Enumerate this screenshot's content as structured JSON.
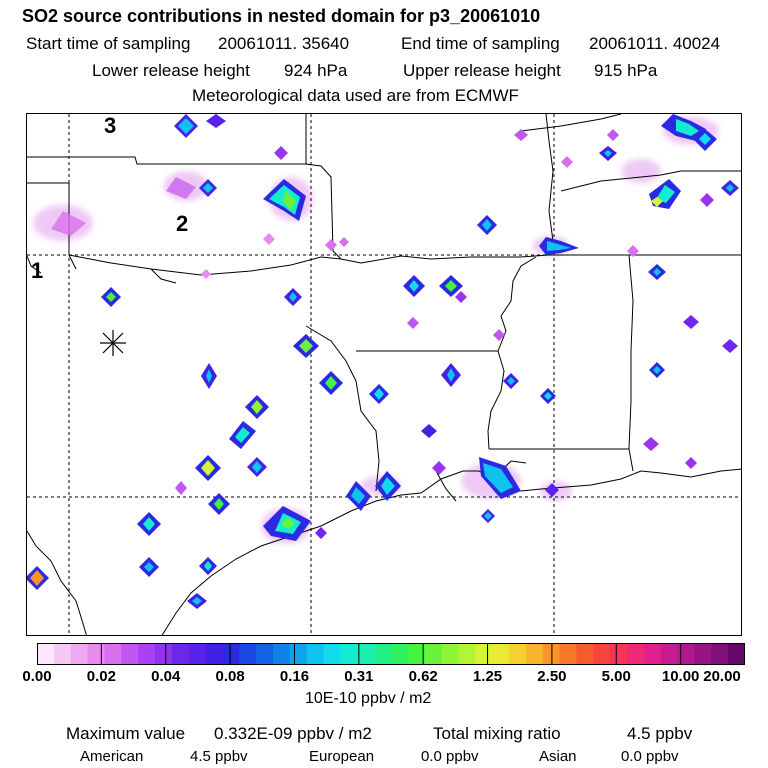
{
  "header": {
    "title": "SO2 source contributions in nested domain for p3_20061010",
    "start_label": "Start time of sampling",
    "start_value": "20061011. 35640",
    "end_label": "End time of sampling",
    "end_value": "20061011. 40024",
    "lower_label": "Lower release height",
    "lower_value": "924 hPa",
    "upper_label": "Upper release height",
    "upper_value": "915 hPa",
    "met_text": "Meteorological data used are from ECMWF"
  },
  "map": {
    "region_labels": [
      "3",
      "2",
      "1"
    ],
    "receptor_marker": "asterisk-marker"
  },
  "colorbar": {
    "ticks": [
      "0.00",
      "0.02",
      "0.04",
      "0.08",
      "0.16",
      "0.31",
      "0.62",
      "1.25",
      "2.50",
      "5.00",
      "10.00",
      "20.00"
    ],
    "colors": [
      "#fde6fb",
      "#f6c8f4",
      "#eeaaf0",
      "#e58ced",
      "#d870ee",
      "#c057f0",
      "#a942f2",
      "#8c34ee",
      "#6f28ea",
      "#5a22ea",
      "#4220e6",
      "#2b2ae2",
      "#1a46e2",
      "#1263e6",
      "#0f82ea",
      "#0fa2ee",
      "#10c2f0",
      "#12dcec",
      "#14ecd2",
      "#1af0b0",
      "#24f08a",
      "#30f062",
      "#44f240",
      "#6af23a",
      "#90f436",
      "#b4f436",
      "#d6f436",
      "#ecea34",
      "#f4d030",
      "#f8b42c",
      "#f89428",
      "#f87828",
      "#f85c2c",
      "#f84440",
      "#f43458",
      "#f02878",
      "#e0208c",
      "#c81c90",
      "#b0188c",
      "#981484",
      "#801078",
      "#68086a"
    ],
    "units": "10E-10 ppbv / m2"
  },
  "stats": {
    "max_label": "Maximum value",
    "max_value": "0.332E-09 ppbv / m2",
    "total_label": "Total mixing ratio",
    "total_value": "4.5 ppbv",
    "american_label": "American",
    "american_value": "4.5 ppbv",
    "european_label": "European",
    "european_value": "0.0 ppbv",
    "asian_label": "Asian",
    "asian_value": "0.0 ppbv"
  }
}
